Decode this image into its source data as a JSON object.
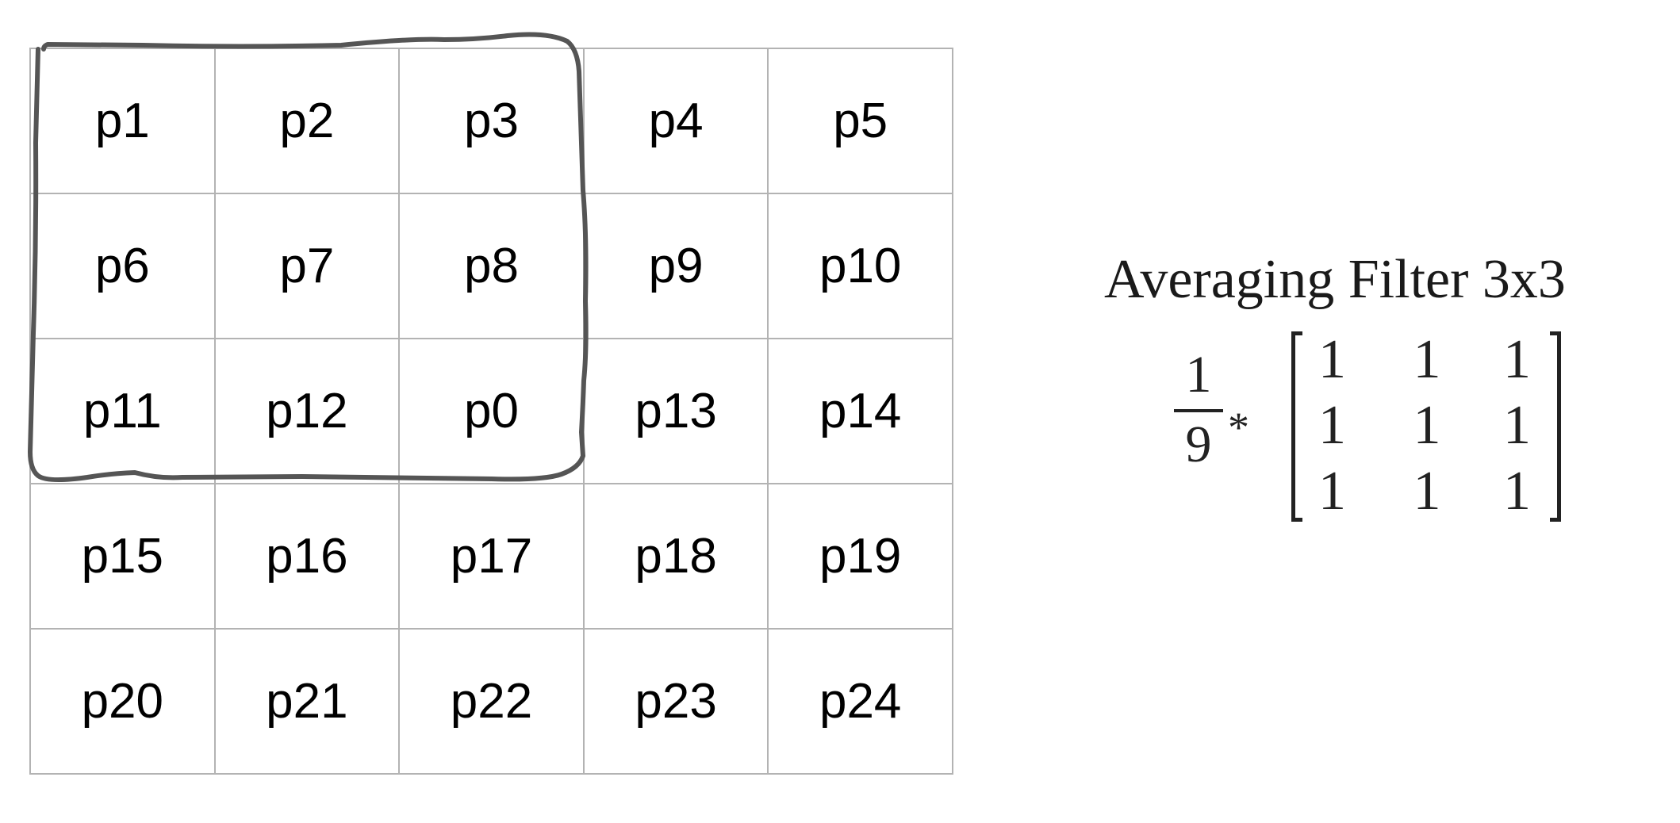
{
  "pixel_grid": {
    "rows": [
      [
        "p1",
        "p2",
        "p3",
        "p4",
        "p5"
      ],
      [
        "p6",
        "p7",
        "p8",
        "p9",
        "p10"
      ],
      [
        "p11",
        "p12",
        "p0",
        "p13",
        "p14"
      ],
      [
        "p15",
        "p16",
        "p17",
        "p18",
        "p19"
      ],
      [
        "p20",
        "p21",
        "p22",
        "p23",
        "p24"
      ]
    ]
  },
  "filter": {
    "title": "Averaging Filter 3x3",
    "numerator": "1",
    "denominator": "9",
    "operator": "*",
    "matrix": [
      [
        "1",
        "1",
        "1"
      ],
      [
        "1",
        "1",
        "1"
      ],
      [
        "1",
        "1",
        "1"
      ]
    ]
  },
  "colors": {
    "grid_line": "#b3b3b3",
    "outline": "#555555",
    "text": "#000000"
  }
}
